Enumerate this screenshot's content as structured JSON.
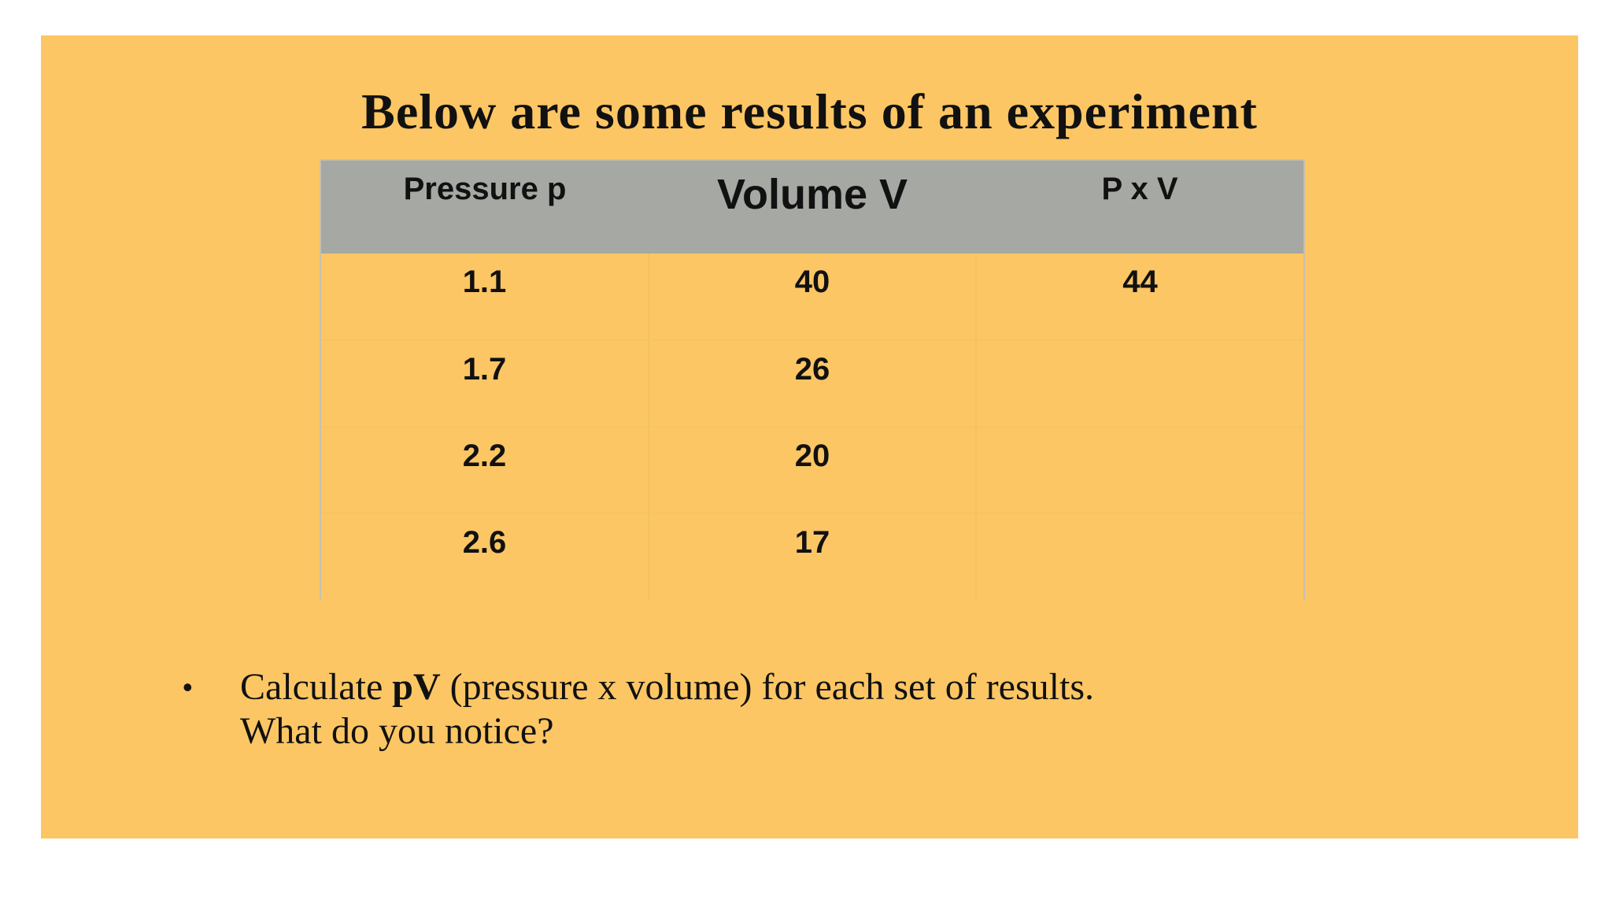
{
  "slide": {
    "title": "Below are some results of an experiment",
    "table": {
      "headers": [
        "Pressure p",
        "Volume V",
        "P x V"
      ],
      "rows": [
        [
          "1.1",
          "40",
          "44"
        ],
        [
          "1.7",
          "26",
          ""
        ],
        [
          "2.2",
          "20",
          ""
        ],
        [
          "2.6",
          "17",
          ""
        ]
      ]
    },
    "bullet": {
      "marker": "•",
      "prefix": "Calculate ",
      "bold": "pV",
      "suffix": " (pressure x volume) for each set of results.",
      "line2": "What do you notice?"
    },
    "colors": {
      "background": "#fcc664",
      "header": "#a5a8a3"
    }
  }
}
